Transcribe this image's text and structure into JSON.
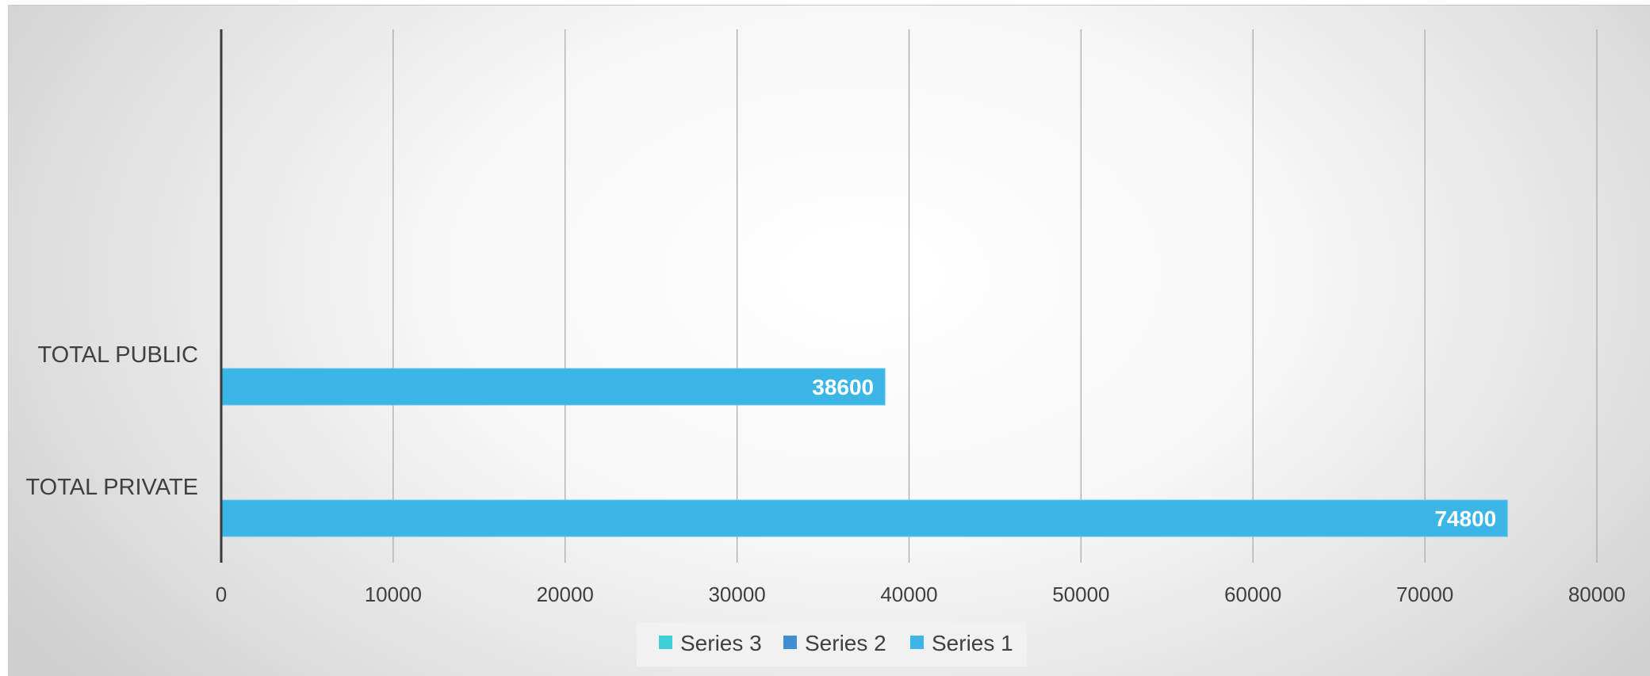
{
  "chart_data": {
    "type": "bar",
    "orientation": "horizontal",
    "categories": [
      "TOTAL PRIVATE",
      "TOTAL PUBLIC"
    ],
    "series": [
      {
        "name": "Series 1",
        "values": [
          74800,
          38600
        ],
        "color": "#3bb6e6"
      },
      {
        "name": "Series 2",
        "values": [
          null,
          null
        ],
        "color": "#3d8fd1"
      },
      {
        "name": "Series 3",
        "values": [
          null,
          null
        ],
        "color": "#3fcfd6"
      }
    ],
    "xlim": [
      0,
      80000
    ],
    "x_ticks": [
      "0",
      "10000",
      "20000",
      "30000",
      "40000",
      "50000",
      "60000",
      "70000",
      "80000"
    ],
    "data_labels": [
      "74800",
      "38600"
    ],
    "grid": "vertical",
    "legend_position": "bottom",
    "legend_order": [
      "Series 3",
      "Series 2",
      "Series 1"
    ],
    "title": "",
    "xlabel": "",
    "ylabel": ""
  }
}
